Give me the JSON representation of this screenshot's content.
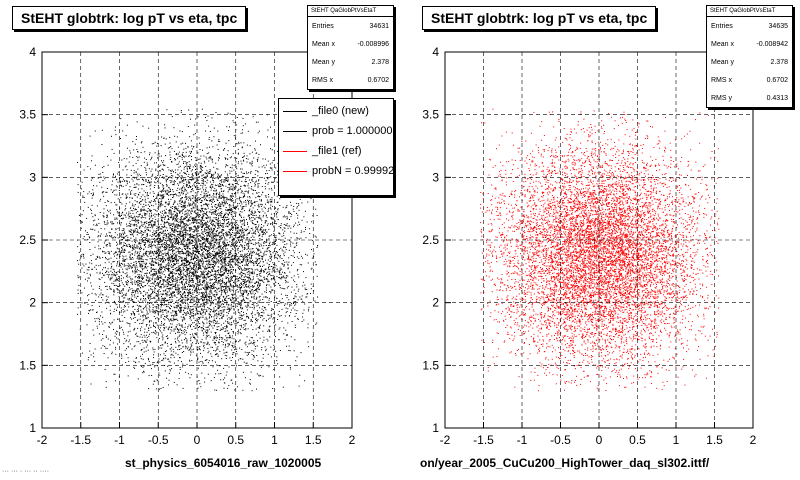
{
  "chart_data": [
    {
      "type": "scatter",
      "title": "StEHT globtrk: log pT vs eta, tpc",
      "xlabel": "st_physics_6054016_raw_1020005",
      "ylabel": "",
      "xlim": [
        -2,
        2
      ],
      "ylim": [
        1,
        4
      ],
      "xticks": [
        "-2",
        "-1.5",
        "-1",
        "-0.5",
        "0",
        "0.5",
        "1",
        "1.5",
        "2"
      ],
      "yticks": [
        "1",
        "1.5",
        "2",
        "2.5",
        "3",
        "3.5",
        "4"
      ],
      "grid": true,
      "marker_color": "#000000",
      "stats": {
        "name": "StEHT QaGlobPtVsEtaT",
        "rows": [
          {
            "label": "Entries",
            "value": "34631"
          },
          {
            "label": "Mean x",
            "value": "-0.008996"
          },
          {
            "label": "Mean y",
            "value": "2.378"
          },
          {
            "label": "RMS x",
            "value": "0.6702"
          }
        ]
      },
      "legend": {
        "placement": "top-right",
        "entries": [
          {
            "label": "_file0 (new)",
            "color": "#000000"
          },
          {
            "label": "prob = 1.000000",
            "color": "#000000"
          },
          {
            "label": "_file1 (ref)",
            "color": "#ff0000"
          },
          {
            "label": "probN = 0.999925",
            "color": "#ff0000"
          }
        ]
      },
      "entries": 34631,
      "mean_x": -0.008996,
      "mean_y": 2.378,
      "rms_x": 0.6702
    },
    {
      "type": "scatter",
      "title": "StEHT globtrk: log pT vs eta, tpc",
      "xlabel": "on/year_2005_CuCu200_HighTower_daq_sl302.ittf/",
      "ylabel": "",
      "xlim": [
        -2,
        2
      ],
      "ylim": [
        1,
        4
      ],
      "xticks": [
        "-2",
        "-1.5",
        "-1",
        "-0.5",
        "0",
        "0.5",
        "1",
        "1.5",
        "2"
      ],
      "yticks": [
        "1",
        "1.5",
        "2",
        "2.5",
        "3",
        "3.5",
        "4"
      ],
      "grid": true,
      "marker_color": "#ff0000",
      "stats": {
        "name": "StEHT QaGlobPtVsEtaT",
        "rows": [
          {
            "label": "Entries",
            "value": "34635"
          },
          {
            "label": "Mean x",
            "value": "-0.008942"
          },
          {
            "label": "Mean y",
            "value": "2.378"
          },
          {
            "label": "RMS x",
            "value": "0.6702"
          },
          {
            "label": "RMS y",
            "value": "0.4313"
          }
        ]
      },
      "entries": 34635,
      "mean_x": -0.008942,
      "mean_y": 2.378,
      "rms_x": 0.6702,
      "rms_y": 0.4313
    }
  ],
  "footer_text": "··· ··· · ··· ·· ····"
}
